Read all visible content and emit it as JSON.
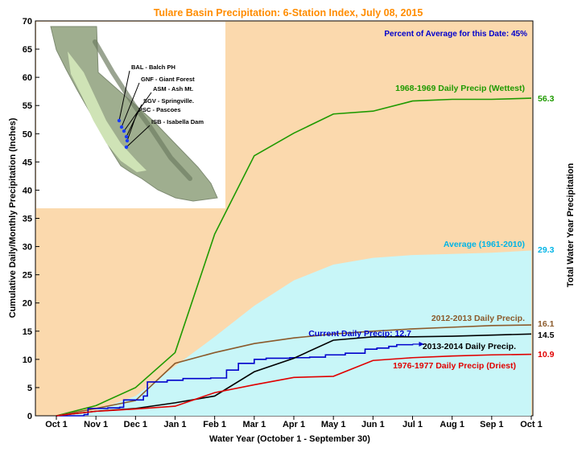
{
  "chart_data": {
    "type": "line",
    "title": "Tulare Basin Precipitation: 6-Station Index, July 08, 2015",
    "subtitle": "Percent of Average for this Date: 45%",
    "xlabel": "Water Year (October 1 - September 30)",
    "ylabel": "Cumulative Daily/Monthly Precipitation (Inches)",
    "ylabel_right": "Total Water Year Precipitation",
    "xlim": [
      0,
      12
    ],
    "ylim": [
      0,
      70
    ],
    "yticks": [
      0,
      5,
      10,
      15,
      20,
      25,
      30,
      35,
      40,
      45,
      50,
      55,
      60,
      65,
      70
    ],
    "xtick_labels": [
      "Oct 1",
      "Nov 1",
      "Dec 1",
      "Jan 1",
      "Feb 1",
      "Mar 1",
      "Apr 1",
      "May 1",
      "Jun 1",
      "Jul 1",
      "Aug 1",
      "Sep 1",
      "Oct 1"
    ],
    "grid": false,
    "colors": {
      "plot_bg": "#fbd9ad",
      "average_fill": "#c8f6f8",
      "wettest": "#1e9a00",
      "average": "#00b4e6",
      "y2013": "#8b5a2b",
      "current": "#0000cc",
      "y2014": "#000000",
      "driest": "#e00000",
      "title": "#ff8c00",
      "subtitle": "#0000cc"
    },
    "series": [
      {
        "key": "wettest",
        "name": "1968-1969 Daily Precip (Wettest)",
        "total_label": "56.3",
        "x": [
          0,
          1,
          2,
          3,
          4,
          5,
          6,
          7,
          8,
          9,
          10,
          11,
          12
        ],
        "y": [
          0,
          1.8,
          5.0,
          11.2,
          32.2,
          46.1,
          50.1,
          53.5,
          54.0,
          55.8,
          56.1,
          56.1,
          56.3
        ]
      },
      {
        "key": "average",
        "name": "Average (1961-2010)",
        "total_label": "29.3",
        "x": [
          0,
          1,
          2,
          3,
          4,
          5,
          6,
          7,
          8,
          9,
          10,
          11,
          12
        ],
        "y": [
          0,
          1.0,
          3.5,
          8.8,
          14.0,
          19.5,
          24.0,
          26.8,
          28.0,
          28.5,
          28.7,
          28.9,
          29.3
        ]
      },
      {
        "key": "y2013",
        "name": "2012-2013 Daily Precip.",
        "total_label": "16.1",
        "x": [
          0,
          1,
          2,
          3,
          4,
          5,
          6,
          7,
          8,
          9,
          10,
          11,
          12
        ],
        "y": [
          0,
          1.3,
          2.7,
          9.3,
          11.2,
          12.8,
          13.8,
          14.5,
          15.0,
          15.4,
          15.7,
          16.0,
          16.1
        ]
      },
      {
        "key": "current",
        "name": "Current Daily Precip: 12.7",
        "total_label": "",
        "x": [
          0,
          0.7,
          0.8,
          1.0,
          1.3,
          1.6,
          1.7,
          2.1,
          2.2,
          2.3,
          2.8,
          3.2,
          3.9,
          4.3,
          4.6,
          5.0,
          5.3,
          5.9,
          6.4,
          6.8,
          7.3,
          7.8,
          8.1,
          8.4,
          8.6,
          9.0
        ],
        "y": [
          0,
          0.2,
          1.3,
          1.3,
          1.4,
          1.5,
          2.8,
          2.8,
          3.5,
          6.0,
          6.3,
          6.6,
          6.7,
          8.1,
          9.3,
          10.0,
          10.2,
          10.3,
          10.4,
          10.8,
          11.1,
          11.8,
          12.0,
          12.3,
          12.6,
          12.7
        ]
      },
      {
        "key": "y2014",
        "name": "2013-2014 Daily Precip.",
        "total_label": "14.5",
        "x": [
          0,
          1,
          2,
          3,
          4,
          5,
          6,
          7,
          8,
          9,
          10,
          11,
          12
        ],
        "y": [
          0,
          0.8,
          1.3,
          2.3,
          3.5,
          7.8,
          10.2,
          13.4,
          14.0,
          14.0,
          14.1,
          14.3,
          14.5
        ]
      },
      {
        "key": "driest",
        "name": "1976-1977 Daily Precip (Driest)",
        "total_label": "10.9",
        "x": [
          0,
          1,
          2,
          3,
          4,
          5,
          6,
          7,
          8,
          9,
          10,
          11,
          12
        ],
        "y": [
          0,
          0.8,
          1.2,
          1.7,
          4.1,
          5.5,
          6.8,
          7.0,
          9.8,
          10.3,
          10.6,
          10.8,
          10.9
        ]
      }
    ],
    "inset_map": {
      "stations": [
        "BAL - Balch PH",
        "GNF - Giant Forest",
        "ASM - Ash Mt.",
        "SGV - Springville.",
        "PSC - Pascoes",
        "ISB - Isabella Dam"
      ]
    }
  }
}
